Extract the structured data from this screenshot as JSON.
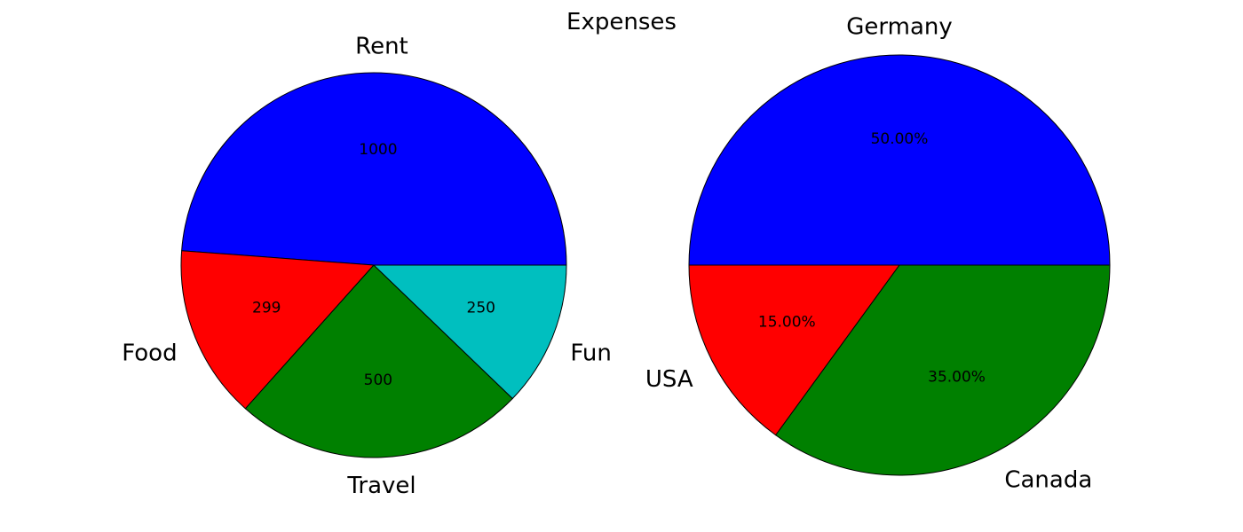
{
  "chart_data": {
    "title": "Expenses",
    "charts": [
      {
        "type": "pie",
        "start_angle_deg": 0,
        "direction": "counterclockwise",
        "label_format": "value",
        "slices": [
          {
            "label": "Rent",
            "value": 1000,
            "value_text": "1000",
            "color": "#0000ff"
          },
          {
            "label": "Food",
            "value": 299,
            "value_text": "299",
            "color": "#ff0000"
          },
          {
            "label": "Travel",
            "value": 500,
            "value_text": "500",
            "color": "#008000"
          },
          {
            "label": "Fun",
            "value": 250,
            "value_text": "250",
            "color": "#00bfbf"
          }
        ]
      },
      {
        "type": "pie",
        "start_angle_deg": 0,
        "direction": "counterclockwise",
        "label_format": "percent",
        "slices": [
          {
            "label": "Germany",
            "value": 50,
            "value_text": "50.00%",
            "color": "#0000ff"
          },
          {
            "label": "USA",
            "value": 15,
            "value_text": "15.00%",
            "color": "#ff0000"
          },
          {
            "label": "Canada",
            "value": 35,
            "value_text": "35.00%",
            "color": "#008000"
          }
        ]
      }
    ]
  }
}
